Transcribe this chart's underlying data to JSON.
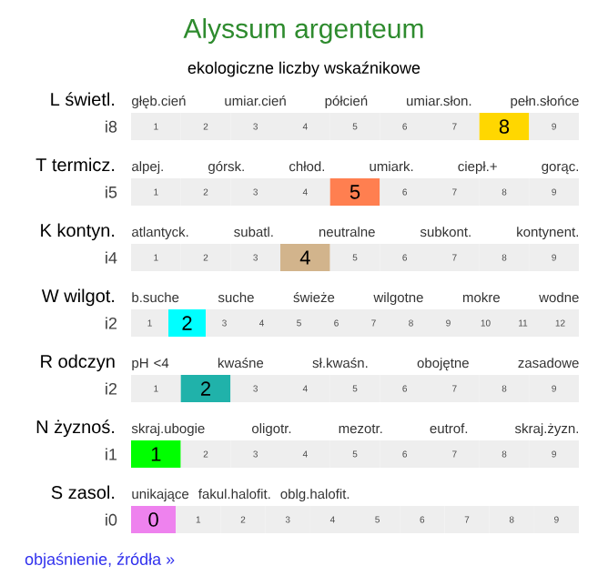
{
  "chart_data": [
    {
      "type": "heatmap",
      "title": "Alyssum argenteum",
      "subtitle": "ekologiczne liczby wskaźnikowe",
      "ylabel": "L świetl.",
      "y_categories": [
        "i8"
      ],
      "categories": [
        "1",
        "2",
        "3",
        "4",
        "5",
        "6",
        "7",
        null,
        "9"
      ],
      "cells": [
        [
          null,
          null,
          null,
          null,
          null,
          null,
          null,
          8,
          null
        ]
      ],
      "color": "#ffd700",
      "data_labels": true,
      "annotations": [
        "głęb.cień",
        "umiar.cień",
        "półcień",
        "umiar.słon.",
        "pełn.słońce"
      ]
    },
    {
      "type": "heatmap",
      "ylabel": "T termicz.",
      "y_categories": [
        "i5"
      ],
      "categories": [
        "1",
        "2",
        "3",
        "4",
        null,
        "6",
        "7",
        "8",
        "9"
      ],
      "cells": [
        [
          null,
          null,
          null,
          null,
          5,
          null,
          null,
          null,
          null
        ]
      ],
      "color": "#ff7f50",
      "data_labels": true,
      "annotations": [
        "alpej.",
        "górsk.",
        "chłod.",
        "umiark.",
        "ciepł.+",
        "gorąc."
      ]
    },
    {
      "type": "heatmap",
      "ylabel": "K kontyn.",
      "y_categories": [
        "i4"
      ],
      "categories": [
        "1",
        "2",
        "3",
        null,
        "5",
        "6",
        "7",
        "8",
        "9"
      ],
      "cells": [
        [
          null,
          null,
          null,
          4,
          null,
          null,
          null,
          null,
          null
        ]
      ],
      "color": "#d2b48c",
      "data_labels": true,
      "annotations": [
        "atlantyck.",
        "subatl.",
        "neutralne",
        "subkont.",
        "kontynent."
      ]
    },
    {
      "type": "heatmap",
      "ylabel": "W wilgot.",
      "y_categories": [
        "i2"
      ],
      "categories": [
        "1",
        null,
        "3",
        "4",
        "5",
        "6",
        "7",
        "8",
        "9",
        "10",
        "11",
        "12"
      ],
      "cells": [
        [
          null,
          2,
          null,
          null,
          null,
          null,
          null,
          null,
          null,
          null,
          null,
          null
        ]
      ],
      "color": "#00ffff",
      "data_labels": true,
      "annotations": [
        "b.suche",
        "suche",
        "świeże",
        "wilgotne",
        "mokre",
        "wodne"
      ]
    },
    {
      "type": "heatmap",
      "ylabel": "R odczyn",
      "y_categories": [
        "i2"
      ],
      "categories": [
        "1",
        null,
        "3",
        "4",
        "5",
        "6",
        "7",
        "8",
        "9"
      ],
      "cells": [
        [
          null,
          2,
          null,
          null,
          null,
          null,
          null,
          null,
          null
        ]
      ],
      "color": "#20b2aa",
      "data_labels": true,
      "annotations": [
        "pH <4",
        "kwaśne",
        "sł.kwaśn.",
        "obojętne",
        "zasadowe"
      ]
    },
    {
      "type": "heatmap",
      "ylabel": "N żyznoś.",
      "y_categories": [
        "i1"
      ],
      "categories": [
        null,
        "2",
        "3",
        "4",
        "5",
        "6",
        "7",
        "8",
        "9"
      ],
      "cells": [
        [
          1,
          null,
          null,
          null,
          null,
          null,
          null,
          null,
          null
        ]
      ],
      "color": "#00ff00",
      "data_labels": true,
      "annotations": [
        "skraj.ubogie",
        "oligotr.",
        "mezotr.",
        "eutrof.",
        "skraj.żyzn."
      ]
    },
    {
      "type": "heatmap",
      "ylabel": "S zasol.",
      "y_categories": [
        "i0"
      ],
      "categories": [
        null,
        "1",
        "2",
        "3",
        "4",
        "5",
        "6",
        "7",
        "8",
        "9"
      ],
      "cells": [
        [
          0,
          null,
          null,
          null,
          null,
          null,
          null,
          null,
          null,
          null
        ]
      ],
      "color": "#ee82ee",
      "data_labels": true,
      "annotations": [
        "unikające",
        "fakul.halofit.",
        "oblg.halofit."
      ]
    },
    {
      "type": "other",
      "annotations": [
        "objaśnienie, źródła »"
      ]
    }
  ]
}
